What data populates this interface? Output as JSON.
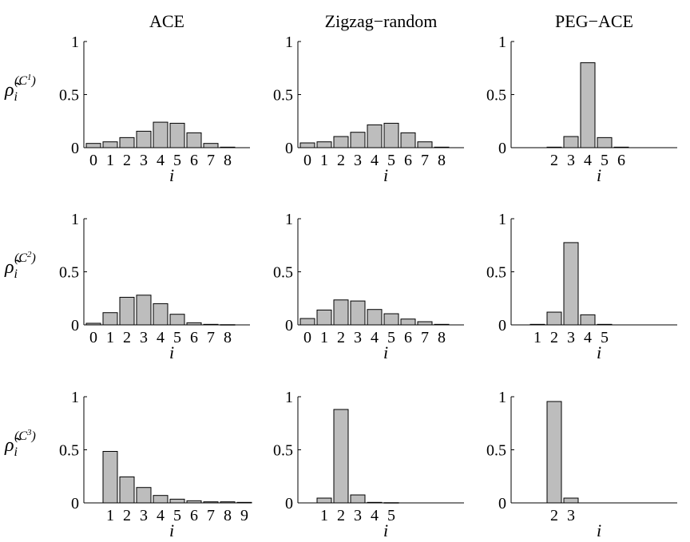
{
  "colors": {
    "bar_fill": "#bdbdbd",
    "bar_stroke": "#000000",
    "axis": "#000000",
    "background": "#ffffff"
  },
  "row_labels": [
    {
      "base": "ρ̃",
      "sub": "i",
      "sup": "(C",
      "sup_sub": "1",
      "sup_end": ")"
    },
    {
      "base": "ρ̃",
      "sub": "i",
      "sup": "(C",
      "sup_sub": "2",
      "sup_end": ")"
    },
    {
      "base": "ρ̃",
      "sub": "i",
      "sup": "(C",
      "sup_sub": "3",
      "sup_end": ")"
    }
  ],
  "chart_data": [
    {
      "type": "bar",
      "title": "ACE",
      "xlabel": "i",
      "ylabel_row": 0,
      "ylim": [
        0,
        1
      ],
      "yticks": [
        "0",
        "0.5",
        "1"
      ],
      "x": [
        0,
        1,
        2,
        3,
        4,
        5,
        6,
        7,
        8
      ],
      "values": [
        0.04,
        0.055,
        0.095,
        0.155,
        0.24,
        0.23,
        0.14,
        0.04,
        0.005
      ],
      "xticks": [
        "0",
        "1",
        "2",
        "3",
        "4",
        "5",
        "6",
        "7",
        "8"
      ]
    },
    {
      "type": "bar",
      "title": "Zigzag−random",
      "xlabel": "i",
      "ylabel_row": 0,
      "ylim": [
        0,
        1
      ],
      "yticks": [
        "0",
        "0.5",
        "1"
      ],
      "x": [
        0,
        1,
        2,
        3,
        4,
        5,
        6,
        7,
        8
      ],
      "values": [
        0.045,
        0.055,
        0.105,
        0.145,
        0.215,
        0.23,
        0.14,
        0.055,
        0.005
      ],
      "xticks": [
        "0",
        "1",
        "2",
        "3",
        "4",
        "5",
        "6",
        "7",
        "8"
      ]
    },
    {
      "type": "bar",
      "title": "PEG−ACE",
      "xlabel": "i",
      "ylabel_row": 0,
      "ylim": [
        0,
        1
      ],
      "yticks": [
        "0",
        "0.5",
        "1"
      ],
      "x": [
        2,
        3,
        4,
        5,
        6
      ],
      "values": [
        0.005,
        0.105,
        0.8,
        0.095,
        0.005
      ],
      "xticks": [
        "2",
        "3",
        "4",
        "5",
        "6"
      ]
    },
    {
      "type": "bar",
      "title": "",
      "xlabel": "i",
      "ylabel_row": 1,
      "ylim": [
        0,
        1
      ],
      "yticks": [
        "0",
        "0.5",
        "1"
      ],
      "x": [
        0,
        1,
        2,
        3,
        4,
        5,
        6,
        7,
        8
      ],
      "values": [
        0.015,
        0.115,
        0.26,
        0.28,
        0.2,
        0.1,
        0.02,
        0.005,
        0.002
      ],
      "xticks": [
        "0",
        "1",
        "2",
        "3",
        "4",
        "5",
        "6",
        "7",
        "8"
      ]
    },
    {
      "type": "bar",
      "title": "",
      "xlabel": "i",
      "ylabel_row": 1,
      "ylim": [
        0,
        1
      ],
      "yticks": [
        "0",
        "0.5",
        "1"
      ],
      "x": [
        0,
        1,
        2,
        3,
        4,
        5,
        6,
        7,
        8
      ],
      "values": [
        0.06,
        0.14,
        0.235,
        0.225,
        0.145,
        0.105,
        0.055,
        0.03,
        0.005
      ],
      "xticks": [
        "0",
        "1",
        "2",
        "3",
        "4",
        "5",
        "6",
        "7",
        "8"
      ]
    },
    {
      "type": "bar",
      "title": "",
      "xlabel": "i",
      "ylabel_row": 1,
      "ylim": [
        0,
        1
      ],
      "yticks": [
        "0",
        "0.5",
        "1"
      ],
      "x": [
        1,
        2,
        3,
        4,
        5
      ],
      "values": [
        0.005,
        0.12,
        0.775,
        0.095,
        0.005
      ],
      "xticks": [
        "1",
        "2",
        "3",
        "4",
        "5"
      ]
    },
    {
      "type": "bar",
      "title": "",
      "xlabel": "i",
      "ylabel_row": 2,
      "ylim": [
        0,
        1
      ],
      "yticks": [
        "0",
        "0.5",
        "1"
      ],
      "x": [
        1,
        2,
        3,
        4,
        5,
        6,
        7,
        8,
        9
      ],
      "values": [
        0.485,
        0.245,
        0.145,
        0.07,
        0.035,
        0.02,
        0.01,
        0.01,
        0.005
      ],
      "xticks": [
        "1",
        "2",
        "3",
        "4",
        "5",
        "6",
        "7",
        "8",
        "9"
      ]
    },
    {
      "type": "bar",
      "title": "",
      "xlabel": "i",
      "ylabel_row": 2,
      "ylim": [
        0,
        1
      ],
      "yticks": [
        "0",
        "0.5",
        "1"
      ],
      "x": [
        1,
        2,
        3,
        4,
        5
      ],
      "values": [
        0.045,
        0.88,
        0.075,
        0.005,
        0.002
      ],
      "xticks": [
        "1",
        "2",
        "3",
        "4",
        "5"
      ]
    },
    {
      "type": "bar",
      "title": "",
      "xlabel": "i",
      "ylabel_row": 2,
      "ylim": [
        0,
        1
      ],
      "yticks": [
        "0",
        "0.5",
        "1"
      ],
      "x": [
        2,
        3
      ],
      "values": [
        0.955,
        0.045
      ],
      "xticks": [
        "2",
        "3"
      ]
    }
  ]
}
